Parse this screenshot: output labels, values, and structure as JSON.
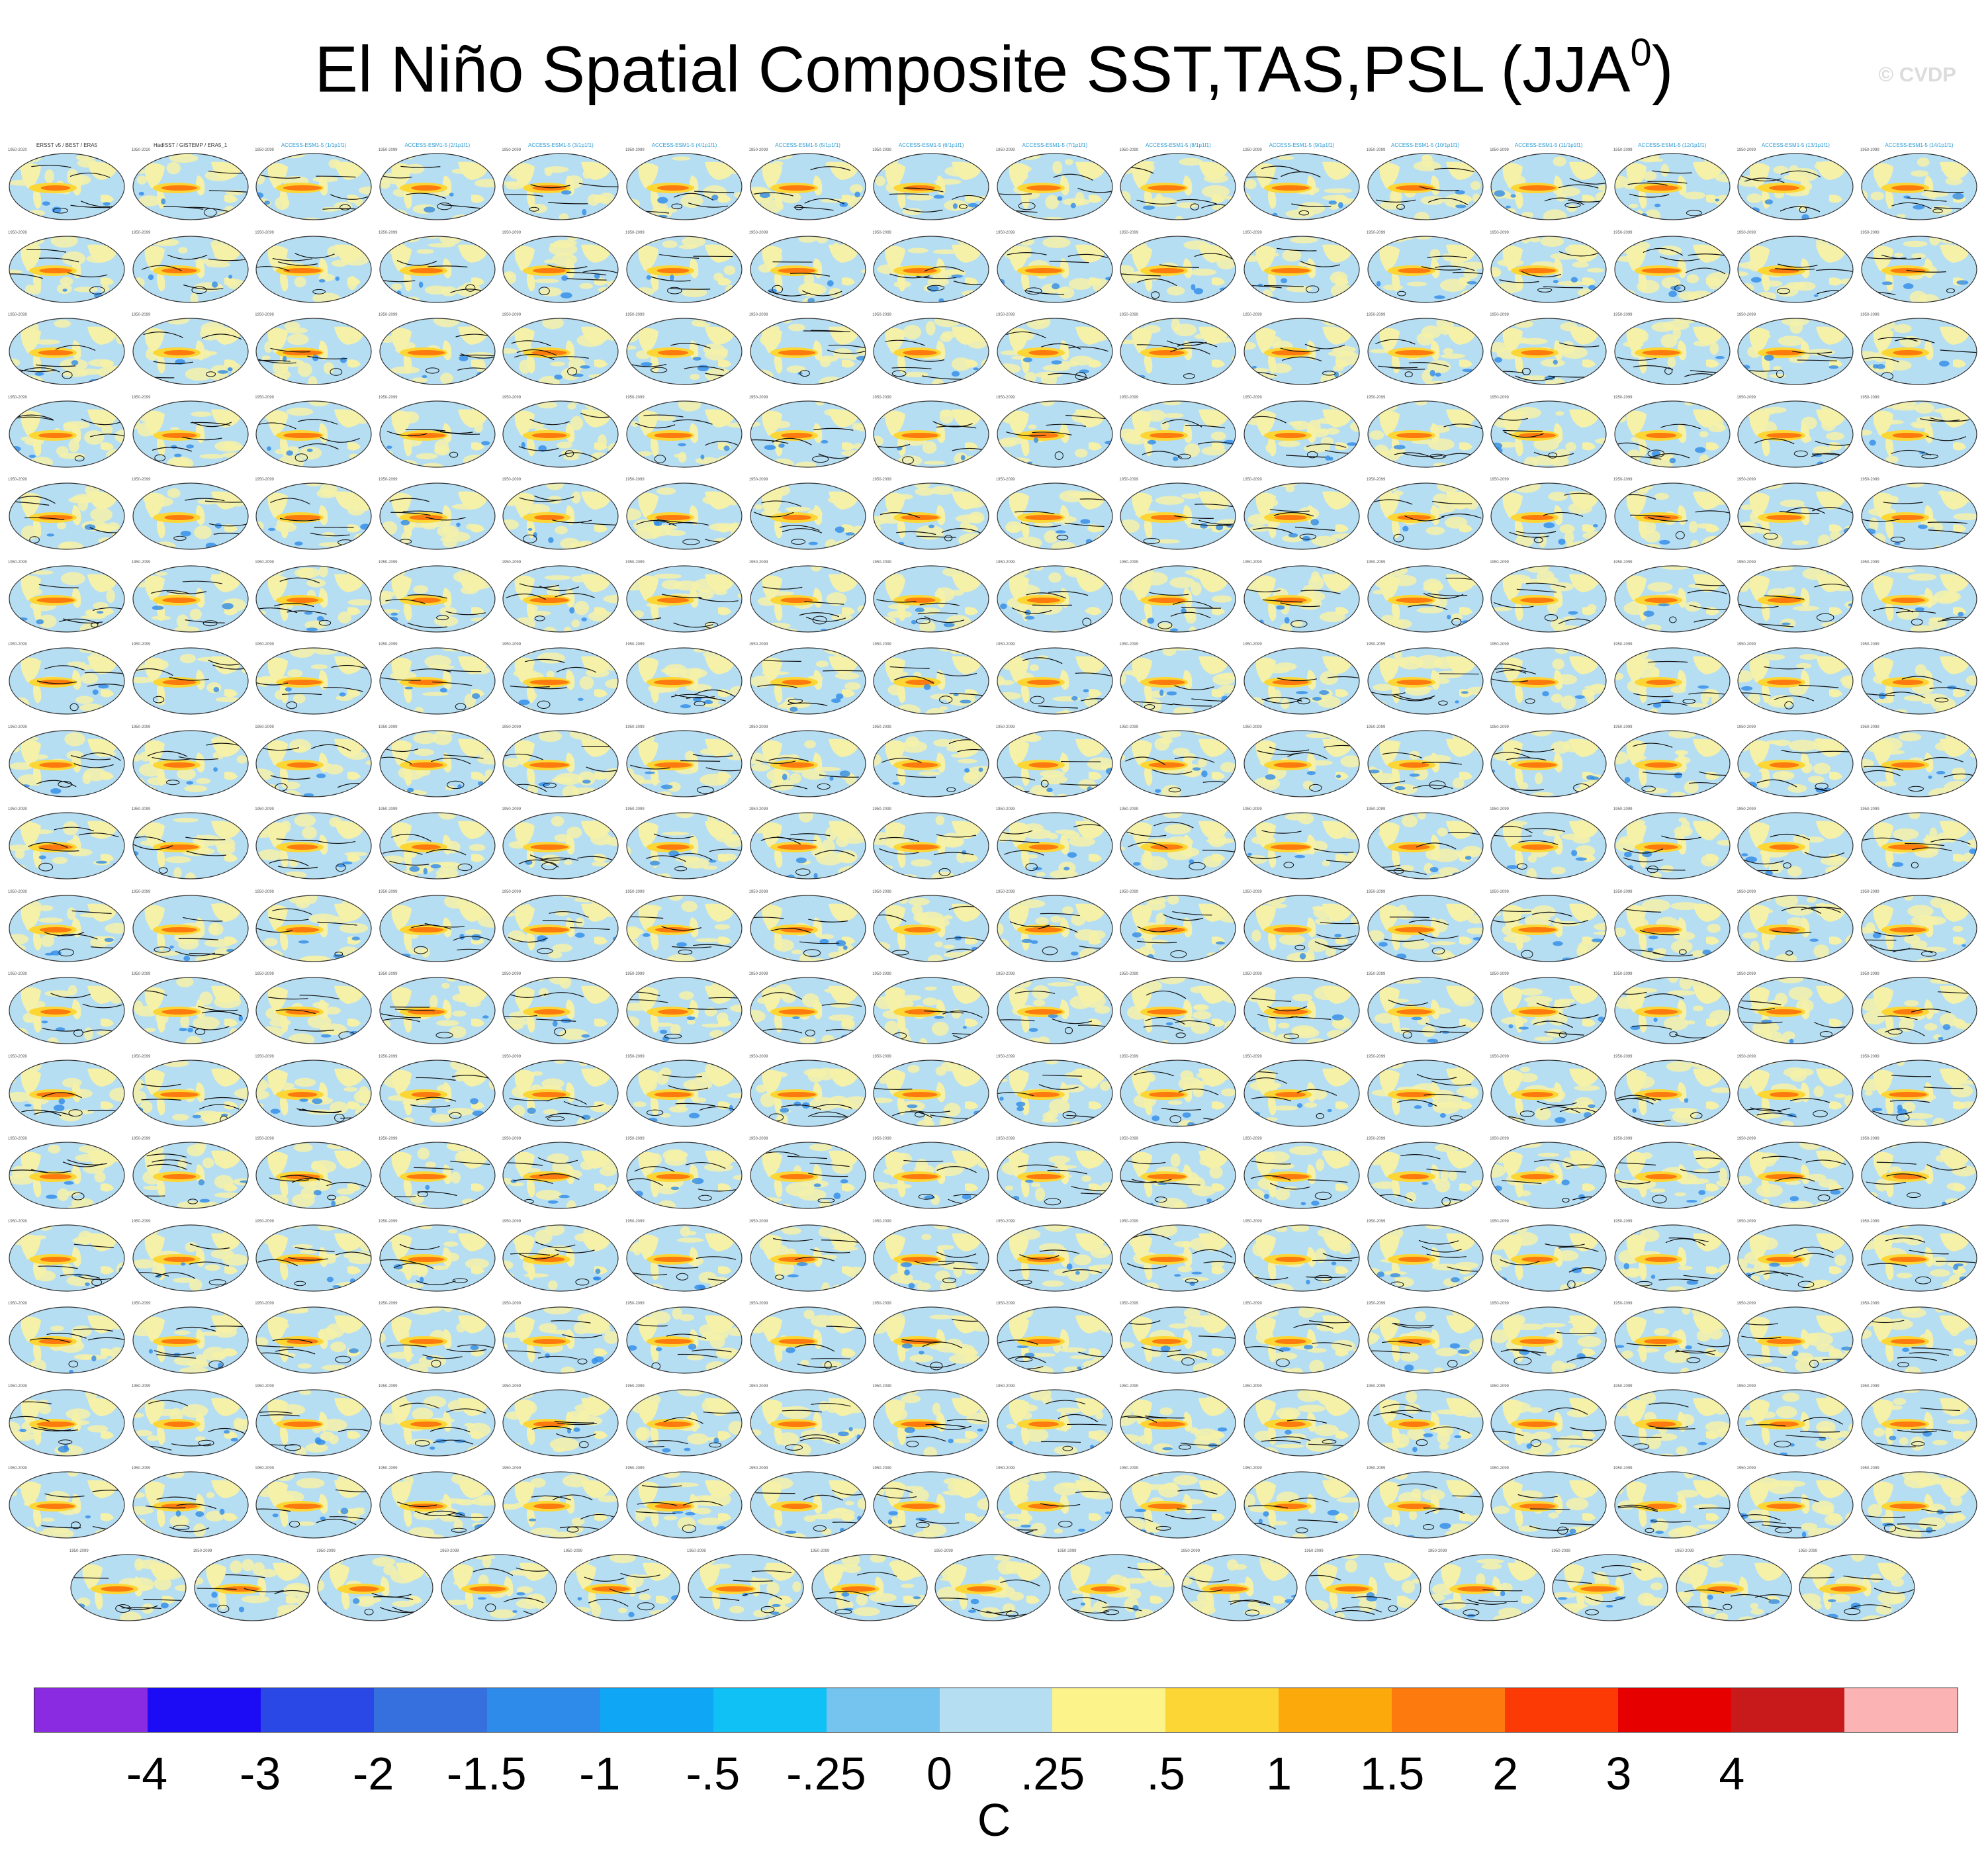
{
  "title": {
    "text": "El Niño Spatial Composite SST,TAS,PSL (JJA",
    "superscript": "0",
    "close": ")"
  },
  "watermark": "© CVDP",
  "colors": {
    "panel_border": "#333333",
    "panel_title_model": "#2f9bd3",
    "panel_title_obs": "#333333",
    "ocean_base": "#b6def3",
    "warm": "#fcd634",
    "hot": "#fc7a0e",
    "land": "#f6f1a8",
    "contour": "#111111"
  },
  "panels": {
    "rows": 18,
    "full_row_columns": 16,
    "last_row_columns": 15,
    "total": 287,
    "first_titles": [
      "ERSST v5 / BEST / ERA5",
      "HadISST / GISTEMP / ERA5_1",
      "ACCESS-ESM1-5 (1/1p1f1)",
      "ACCESS-ESM1-5 (2/1p1f1)",
      "ACCESS-ESM1-5 (3/1p1f1)",
      "ACCESS-ESM1-5 (4/1p1f1)",
      "ACCESS-ESM1-5 (5/1p1f1)",
      "ACCESS-ESM1-5 (6/1p1f1)",
      "ACCESS-ESM1-5 (7/1p1f1)",
      "ACCESS-ESM1-5 (8/1p1f1)",
      "ACCESS-ESM1-5 (9/1p1f1)",
      "ACCESS-ESM1-5 (10/1p1f1)",
      "ACCESS-ESM1-5 (11/1p1f1)",
      "ACCESS-ESM1-5 (12/1p1f1)",
      "ACCESS-ESM1-5 (13/1p1f1)",
      "ACCESS-ESM1-5 (14/1p1f1)"
    ],
    "obs_years": [
      "1950-2020",
      "1950-2020"
    ],
    "model_years": "1950-2099"
  },
  "chart_data": {
    "type": "heatmap",
    "title": "El Niño Spatial Composite SST,TAS,PSL (JJA0)",
    "colorbar": {
      "unit": "C",
      "tick_labels": [
        "-4",
        "-3",
        "-2",
        "-1.5",
        "-1",
        "-.5",
        "-.25",
        "0",
        ".25",
        ".5",
        "1",
        "1.5",
        "2",
        "3",
        "4"
      ],
      "colors": [
        "#8a2be2",
        "#1c0cf5",
        "#2a48e6",
        "#3670df",
        "#2f8be9",
        "#0fa6f5",
        "#0fc1f4",
        "#75c4ef",
        "#b6def3",
        "#fcf38a",
        "#fcd634",
        "#fca90c",
        "#fc7a0e",
        "#fb3a06",
        "#e70000",
        "#c81a1a",
        "#fcb3b3"
      ]
    }
  }
}
